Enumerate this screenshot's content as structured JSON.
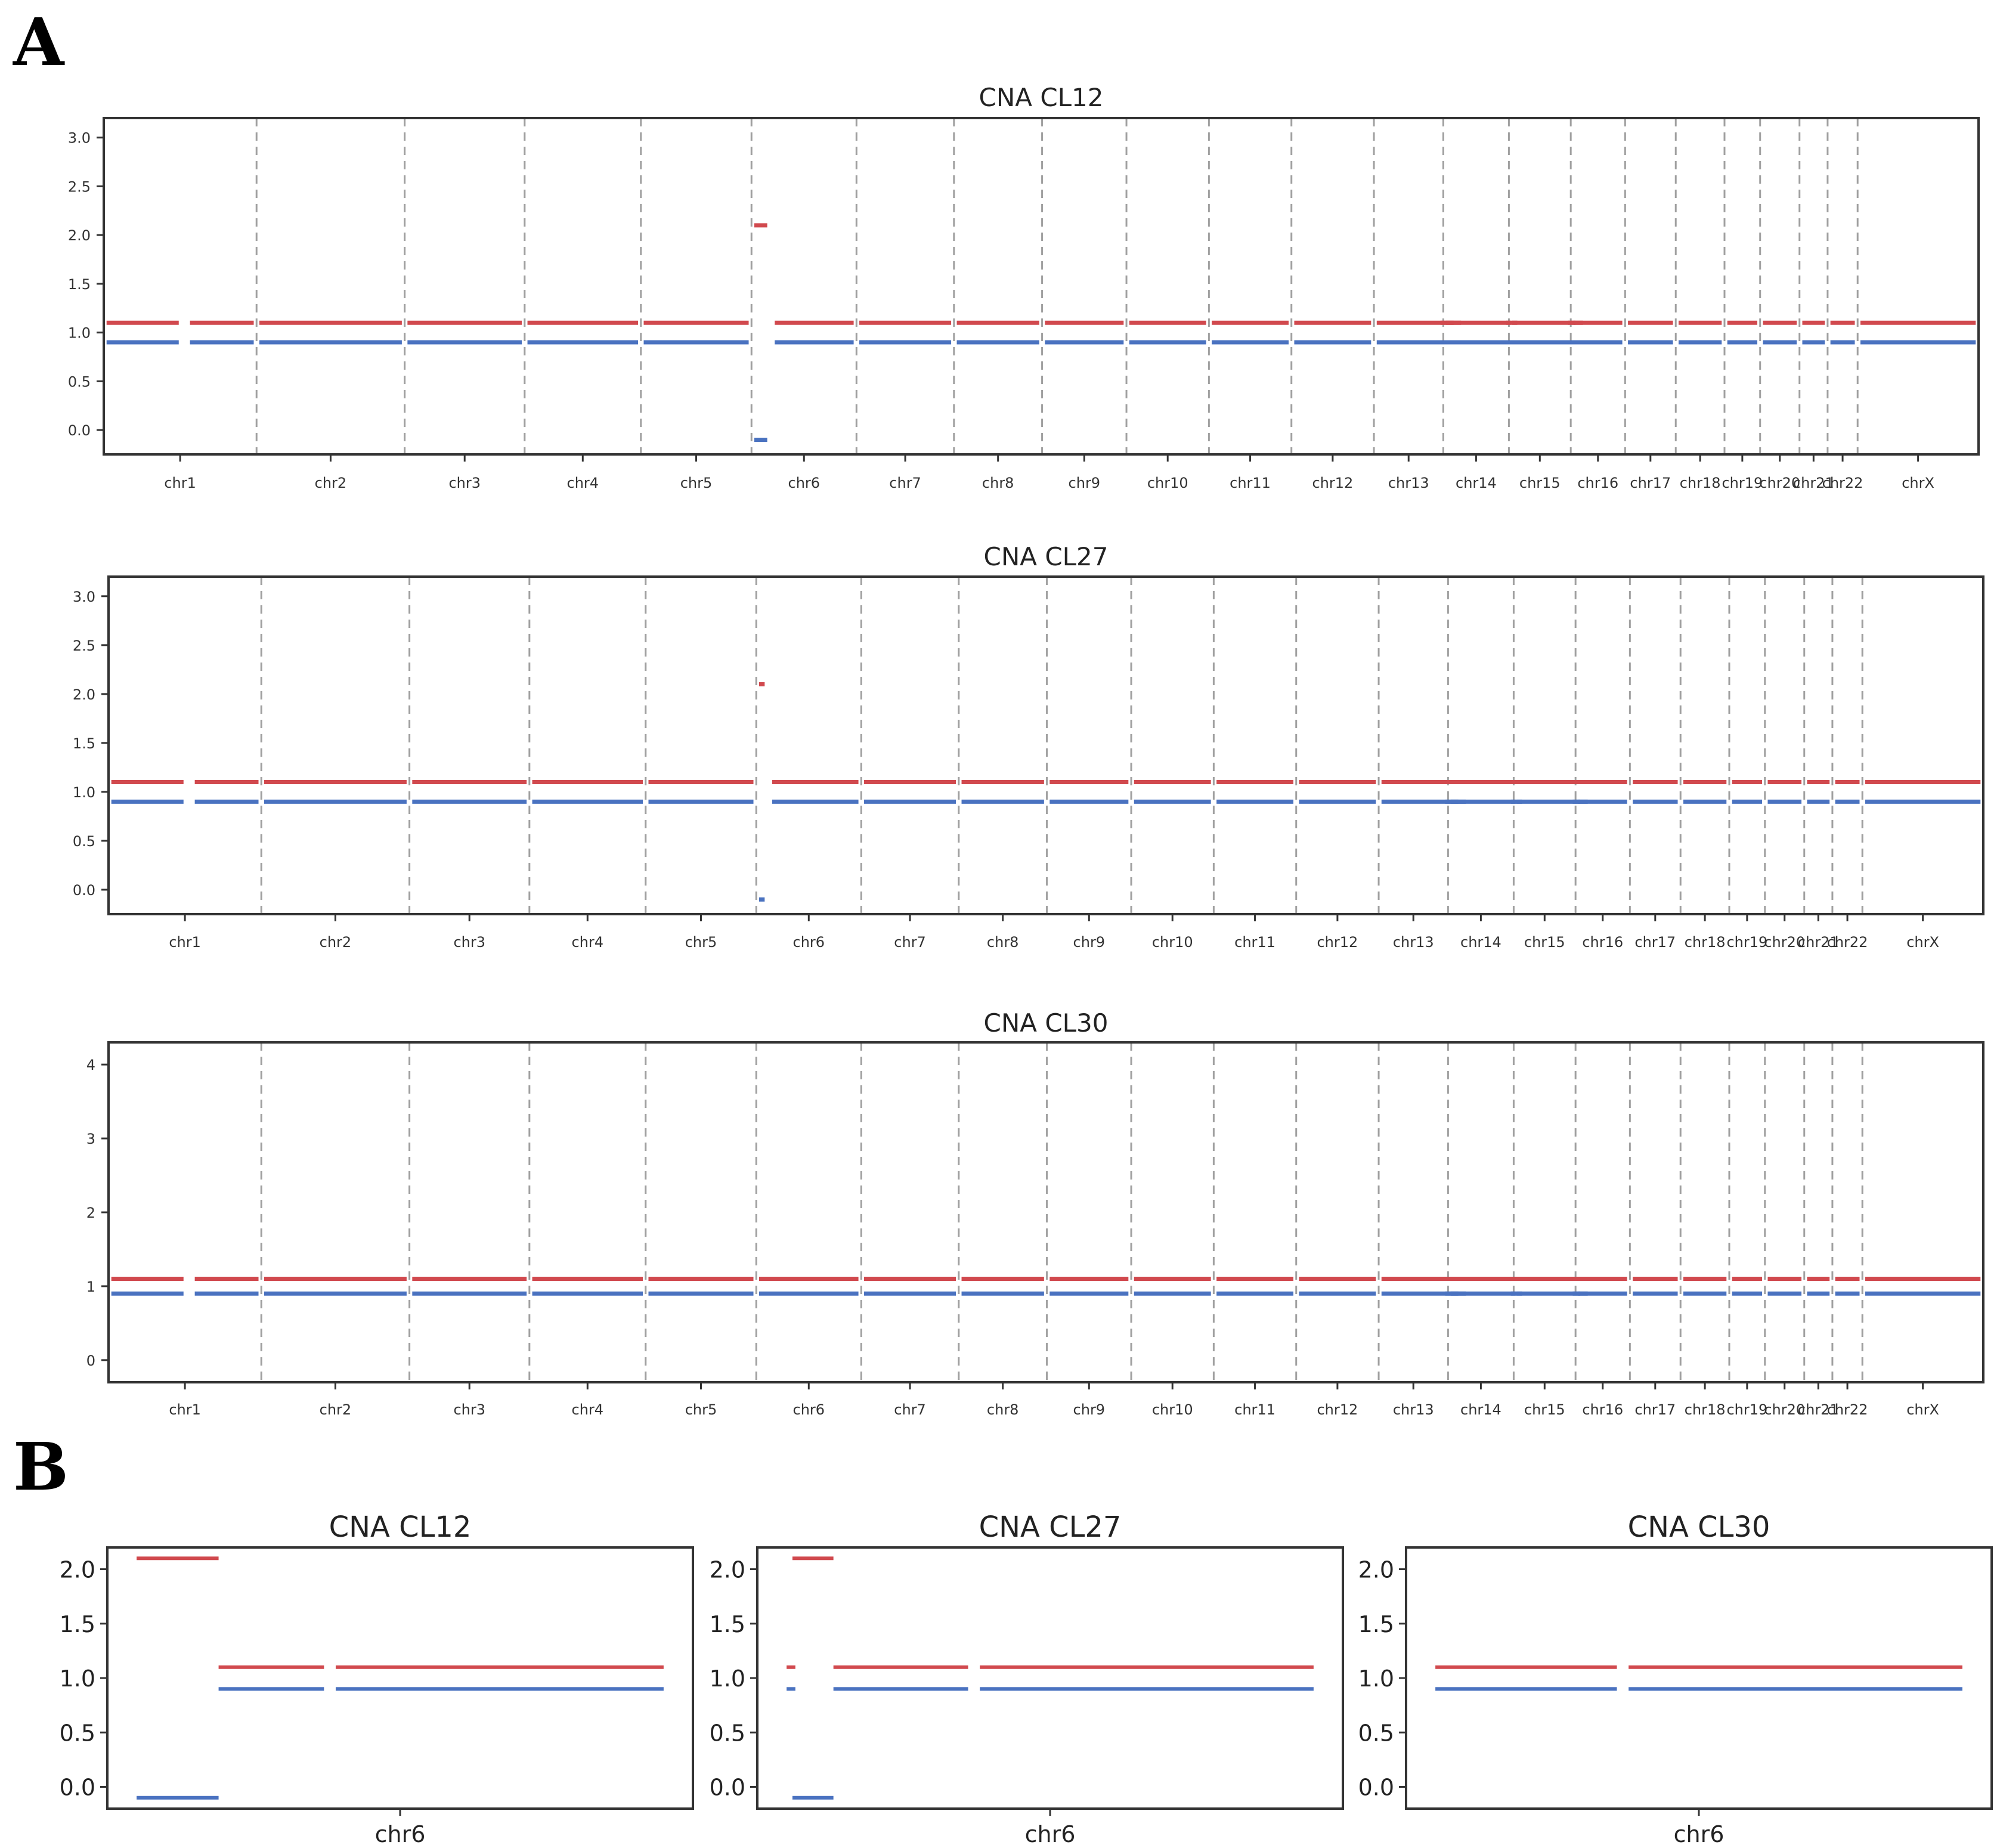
{
  "panel_labels": {
    "a": "A",
    "b": "B"
  },
  "colors": {
    "major": "#d1494e",
    "minor": "#4a72c0",
    "vline": "#a0a0a0",
    "axis": "#333333"
  },
  "chart_data": [
    {
      "type": "line",
      "title": "CNA CL12",
      "xlabel": "",
      "ylabel": "",
      "ylim": [
        -0.25,
        3.2
      ],
      "yticks": [
        "0.0",
        "0.5",
        "1.0",
        "1.5",
        "2.0",
        "2.5",
        "3.0"
      ],
      "ytick_values": [
        0,
        0.5,
        1,
        1.5,
        2,
        2.5,
        3
      ],
      "grid": false,
      "boundaries": "dashed",
      "chromosomes": [
        "chr1",
        "chr2",
        "chr3",
        "chr4",
        "chr5",
        "chr6",
        "chr7",
        "chr8",
        "chr9",
        "chr10",
        "chr11",
        "chr12",
        "chr13",
        "chr14",
        "chr15",
        "chr16",
        "chr17",
        "chr18",
        "chr19",
        "chr20",
        "chr21",
        "chr22",
        "chrX"
      ],
      "series": [
        {
          "values": [
            1.1,
            1.1,
            1.1,
            1.1,
            1.1,
            1.1,
            1.1,
            1.1,
            1.1,
            1.1,
            1.1,
            1.1,
            1.1,
            1.1,
            1.1,
            1.1,
            1.1,
            1.1,
            1.1,
            1.1,
            1.1,
            1.1,
            1.1
          ]
        },
        {
          "values": [
            0.9,
            0.9,
            0.9,
            0.9,
            0.9,
            0.9,
            0.9,
            0.9,
            0.9,
            0.9,
            0.9,
            0.9,
            0.9,
            0.9,
            0.9,
            0.9,
            0.9,
            0.9,
            0.9,
            0.9,
            0.9,
            0.9,
            0.9
          ]
        }
      ],
      "annotations": [
        {
          "chromosome": "chr6",
          "start_fraction": 0,
          "end_fraction": 0.15,
          "major": 2.1,
          "minor": -0.1
        }
      ]
    },
    {
      "type": "line",
      "title": "CNA CL27",
      "xlabel": "",
      "ylabel": "",
      "ylim": [
        -0.25,
        3.2
      ],
      "yticks": [
        "0.0",
        "0.5",
        "1.0",
        "1.5",
        "2.0",
        "2.5",
        "3.0"
      ],
      "ytick_values": [
        0,
        0.5,
        1,
        1.5,
        2,
        2.5,
        3
      ],
      "grid": false,
      "boundaries": "dashed",
      "chromosomes": [
        "chr1",
        "chr2",
        "chr3",
        "chr4",
        "chr5",
        "chr6",
        "chr7",
        "chr8",
        "chr9",
        "chr10",
        "chr11",
        "chr12",
        "chr13",
        "chr14",
        "chr15",
        "chr16",
        "chr17",
        "chr18",
        "chr19",
        "chr20",
        "chr21",
        "chr22",
        "chrX"
      ],
      "series": [
        {
          "values": [
            1.1,
            1.1,
            1.1,
            1.1,
            1.1,
            1.1,
            1.1,
            1.1,
            1.1,
            1.1,
            1.1,
            1.1,
            1.1,
            1.1,
            1.1,
            1.1,
            1.1,
            1.1,
            1.1,
            1.1,
            1.1,
            1.1,
            1.1
          ]
        },
        {
          "values": [
            0.9,
            0.9,
            0.9,
            0.9,
            0.9,
            0.9,
            0.9,
            0.9,
            0.9,
            0.9,
            0.9,
            0.9,
            0.9,
            0.9,
            0.9,
            0.9,
            0.9,
            0.9,
            0.9,
            0.9,
            0.9,
            0.9,
            0.9
          ]
        }
      ],
      "annotations": [
        {
          "chromosome": "chr6",
          "start_fraction": 0,
          "end_fraction": 0.08,
          "major": 2.1,
          "minor": -0.1
        }
      ]
    },
    {
      "type": "line",
      "title": "CNA CL30",
      "xlabel": "",
      "ylabel": "",
      "ylim": [
        -0.3,
        4.3
      ],
      "yticks": [
        "0",
        "1",
        "2",
        "3",
        "4"
      ],
      "ytick_values": [
        0,
        1,
        2,
        3,
        4
      ],
      "grid": false,
      "boundaries": "dashed",
      "chromosomes": [
        "chr1",
        "chr2",
        "chr3",
        "chr4",
        "chr5",
        "chr6",
        "chr7",
        "chr8",
        "chr9",
        "chr10",
        "chr11",
        "chr12",
        "chr13",
        "chr14",
        "chr15",
        "chr16",
        "chr17",
        "chr18",
        "chr19",
        "chr20",
        "chr21",
        "chr22",
        "chrX"
      ],
      "series": [
        {
          "values": [
            1.1,
            1.1,
            1.1,
            1.1,
            1.1,
            1.1,
            1.1,
            1.1,
            1.1,
            1.1,
            1.1,
            1.1,
            1.1,
            1.1,
            1.1,
            1.1,
            1.1,
            1.1,
            1.1,
            1.1,
            1.1,
            1.1,
            1.1
          ]
        },
        {
          "values": [
            0.9,
            0.9,
            0.9,
            0.9,
            0.9,
            0.9,
            0.9,
            0.9,
            0.9,
            0.9,
            0.9,
            0.9,
            0.9,
            0.9,
            0.9,
            0.9,
            0.9,
            0.9,
            0.9,
            0.9,
            0.9,
            0.9,
            0.9
          ]
        }
      ],
      "annotations": []
    },
    {
      "type": "line",
      "title": "CNA CL12",
      "xlabel": "chr6",
      "ylabel": "",
      "ylim": [
        -0.2,
        2.2
      ],
      "yticks": [
        "0.0",
        "0.5",
        "1.0",
        "1.5",
        "2.0"
      ],
      "ytick_values": [
        0,
        0.5,
        1,
        1.5,
        2
      ],
      "grid": false,
      "segments": [
        {
          "x": [
            0.05,
            0.19
          ],
          "major": 2.1,
          "minor": -0.1
        },
        {
          "x": [
            0.19,
            0.37
          ],
          "major": 1.1,
          "minor": 0.9
        },
        {
          "x": [
            0.39,
            0.95
          ],
          "major": 1.1,
          "minor": 0.9
        }
      ]
    },
    {
      "type": "line",
      "title": "CNA CL27",
      "xlabel": "chr6",
      "ylabel": "",
      "ylim": [
        -0.2,
        2.2
      ],
      "yticks": [
        "0.0",
        "0.5",
        "1.0",
        "1.5",
        "2.0"
      ],
      "ytick_values": [
        0,
        0.5,
        1,
        1.5,
        2
      ],
      "grid": false,
      "segments": [
        {
          "x": [
            0.06,
            0.13
          ],
          "major": 2.1,
          "minor": -0.1
        },
        {
          "x": [
            0.05,
            0.065
          ],
          "major": 1.1,
          "minor": 0.9
        },
        {
          "x": [
            0.13,
            0.36
          ],
          "major": 1.1,
          "minor": 0.9
        },
        {
          "x": [
            0.38,
            0.95
          ],
          "major": 1.1,
          "minor": 0.9
        }
      ]
    },
    {
      "type": "line",
      "title": "CNA CL30",
      "xlabel": "chr6",
      "ylabel": "",
      "ylim": [
        -0.2,
        2.2
      ],
      "yticks": [
        "0.0",
        "0.5",
        "1.0",
        "1.5",
        "2.0"
      ],
      "ytick_values": [
        0,
        0.5,
        1,
        1.5,
        2
      ],
      "grid": false,
      "segments": [
        {
          "x": [
            0.05,
            0.36
          ],
          "major": 1.1,
          "minor": 0.9
        },
        {
          "x": [
            0.38,
            0.95
          ],
          "major": 1.1,
          "minor": 0.9
        }
      ]
    }
  ]
}
